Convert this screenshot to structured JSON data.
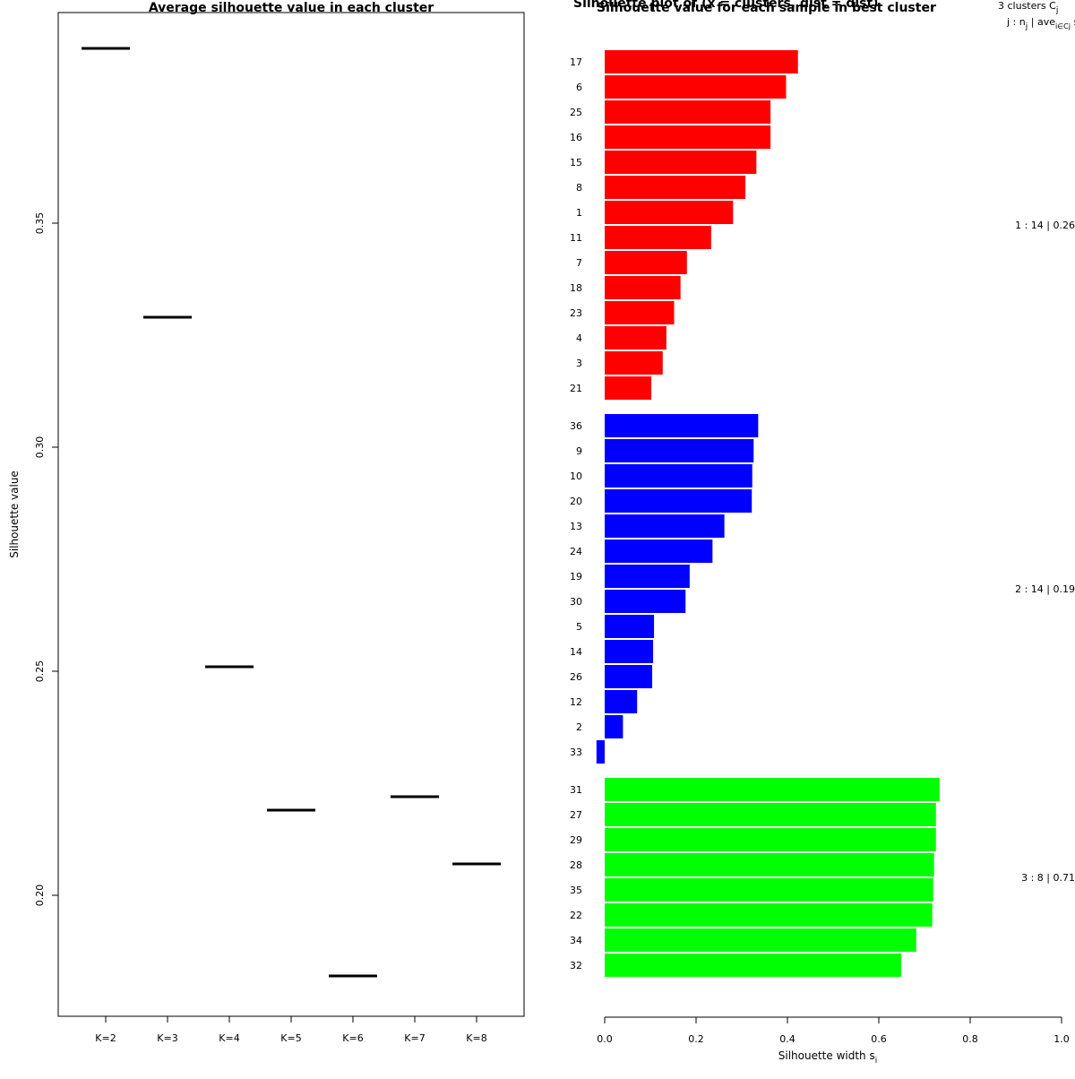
{
  "chart_data": [
    {
      "type": "segment",
      "title": "Average silhouette value in each cluster",
      "xlabel": "",
      "ylabel": "Silhouette value",
      "categories": [
        "K=2",
        "K=3",
        "K=4",
        "K=5",
        "K=6",
        "K=7",
        "K=8"
      ],
      "values": [
        0.389,
        0.329,
        0.251,
        0.219,
        0.182,
        0.222,
        0.207
      ],
      "ylim": [
        0.173,
        0.397
      ],
      "yticks": [
        0.2,
        0.25,
        0.3,
        0.35
      ],
      "ytick_labels": [
        "0.20",
        "0.25",
        "0.30",
        "0.35"
      ],
      "grid": false
    },
    {
      "type": "bar",
      "orientation": "horizontal",
      "title": "Silhouette value for each sample in best cluster",
      "title_overlap": "Silhouette plot of (x = clusters, dist = dist)",
      "xlabel": "Silhouette width s",
      "xlabel_subscript": "i",
      "xlim": [
        0,
        1
      ],
      "xticks": [
        0,
        0.2,
        0.4,
        0.6,
        0.8,
        1.0
      ],
      "xtick_labels": [
        "0.0",
        "0.2",
        "0.4",
        "0.6",
        "0.8",
        "1.0"
      ],
      "header_line1": "3  clusters  C",
      "header_line1_sub": "j",
      "header_line2": "j :  n",
      "header_line2_sub": "j",
      "header_line2_mid": " | ave",
      "header_line2_sub2": "i∈Cj",
      "header_line2_end": "  s",
      "header_line2_end_sub": "i",
      "series": [
        {
          "name": "1 :  14  |  0.26",
          "color": "#ff0000",
          "labels": [
            "17",
            "6",
            "25",
            "16",
            "15",
            "8",
            "1",
            "11",
            "7",
            "18",
            "23",
            "4",
            "3",
            "21"
          ],
          "values": [
            0.423,
            0.397,
            0.363,
            0.363,
            0.332,
            0.308,
            0.281,
            0.233,
            0.18,
            0.166,
            0.152,
            0.135,
            0.127,
            0.102
          ]
        },
        {
          "name": "2 :  14  |  0.19",
          "color": "#0000ff",
          "labels": [
            "36",
            "9",
            "10",
            "20",
            "13",
            "24",
            "19",
            "30",
            "5",
            "14",
            "26",
            "12",
            "2",
            "33"
          ],
          "values": [
            0.336,
            0.326,
            0.323,
            0.322,
            0.262,
            0.236,
            0.186,
            0.177,
            0.108,
            0.106,
            0.104,
            0.071,
            0.04,
            -0.018
          ]
        },
        {
          "name": "3 :  8  |  0.71",
          "color": "#00ff00",
          "labels": [
            "31",
            "27",
            "29",
            "28",
            "35",
            "22",
            "34",
            "32"
          ],
          "values": [
            0.733,
            0.725,
            0.725,
            0.721,
            0.719,
            0.717,
            0.682,
            0.649
          ]
        }
      ]
    }
  ]
}
